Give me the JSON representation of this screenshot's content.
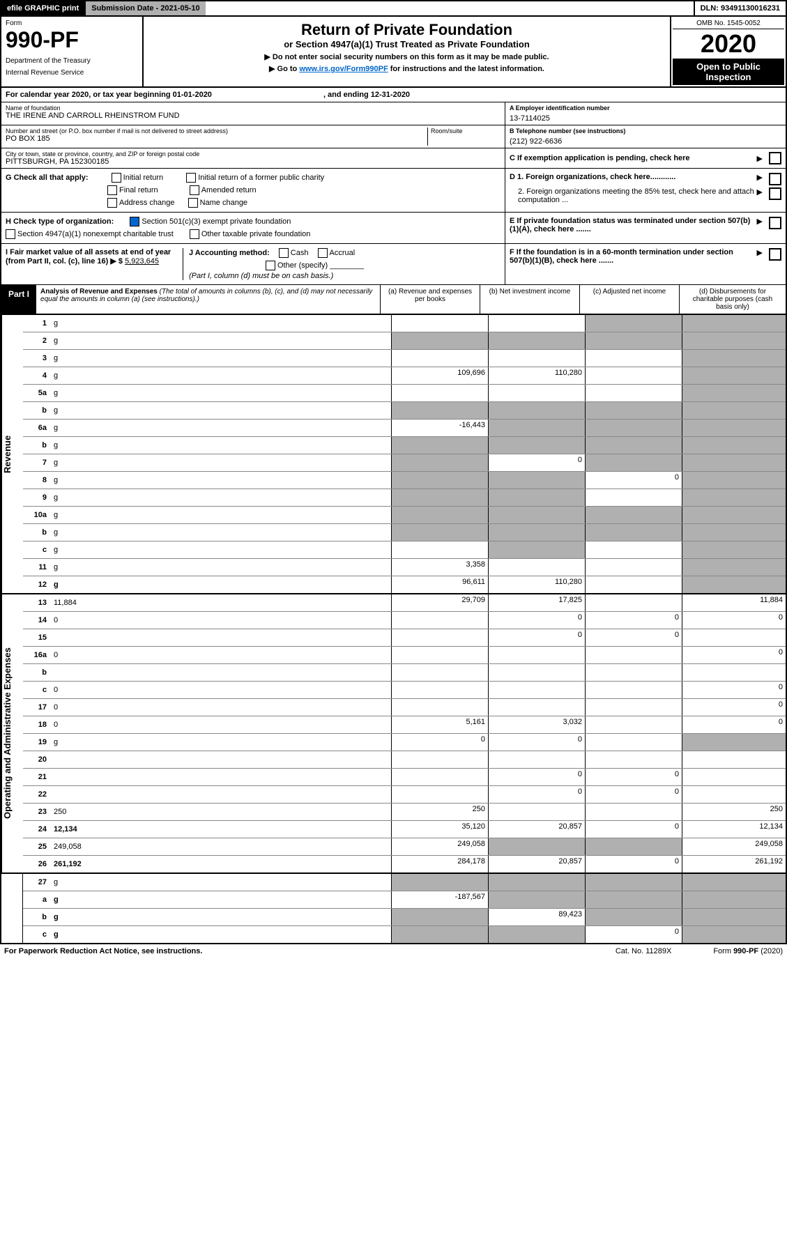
{
  "topbar": {
    "print": "efile GRAPHIC print",
    "submission": "Submission Date - 2021-05-10",
    "dln": "DLN: 93491130016231"
  },
  "header": {
    "form_label": "Form",
    "form_number": "990-PF",
    "dept1": "Department of the Treasury",
    "dept2": "Internal Revenue Service",
    "title": "Return of Private Foundation",
    "subtitle": "or Section 4947(a)(1) Trust Treated as Private Foundation",
    "note1": "▶ Do not enter social security numbers on this form as it may be made public.",
    "note2_pre": "▶ Go to ",
    "note2_link": "www.irs.gov/Form990PF",
    "note2_post": " for instructions and the latest information.",
    "omb": "OMB No. 1545-0052",
    "year": "2020",
    "open": "Open to Public Inspection"
  },
  "calendar": {
    "text_pre": "For calendar year 2020, or tax year beginning ",
    "begin": "01-01-2020",
    "text_mid": ", and ending ",
    "end": "12-31-2020"
  },
  "info": {
    "name_label": "Name of foundation",
    "name": "THE IRENE AND CARROLL RHEINSTROM FUND",
    "address_label": "Number and street (or P.O. box number if mail is not delivered to street address)",
    "room_label": "Room/suite",
    "address": "PO BOX 185",
    "city_label": "City or town, state or province, country, and ZIP or foreign postal code",
    "city": "PITTSBURGH, PA  152300185",
    "ein_label": "A Employer identification number",
    "ein": "13-7114025",
    "phone_label": "B Telephone number (see instructions)",
    "phone": "(212) 922-6636",
    "c_label": "C If exemption application is pending, check here"
  },
  "checks": {
    "g_label": "G Check all that apply:",
    "g_initial": "Initial return",
    "g_initial_former": "Initial return of a former public charity",
    "g_final": "Final return",
    "g_amended": "Amended return",
    "g_address": "Address change",
    "g_name": "Name change",
    "h_label": "H Check type of organization:",
    "h_501c3": "Section 501(c)(3) exempt private foundation",
    "h_4947": "Section 4947(a)(1) nonexempt charitable trust",
    "h_other": "Other taxable private foundation",
    "i_label_pre": "I Fair market value of all assets at end of year (from Part II, col. (c), line 16) ▶ $ ",
    "i_value": "5,923,645",
    "j_label": "J Accounting method:",
    "j_cash": "Cash",
    "j_accrual": "Accrual",
    "j_other": "Other (specify)",
    "j_note": "(Part I, column (d) must be on cash basis.)",
    "d1": "D 1. Foreign organizations, check here............",
    "d2": "2. Foreign organizations meeting the 85% test, check here and attach computation ...",
    "e": "E  If private foundation status was terminated under section 507(b)(1)(A), check here .......",
    "f": "F  If the foundation is in a 60-month termination under section 507(b)(1)(B), check here .......",
    "arrow": "▶"
  },
  "part1": {
    "label": "Part I",
    "title": "Analysis of Revenue and Expenses",
    "desc": " (The total of amounts in columns (b), (c), and (d) may not necessarily equal the amounts in column (a) (see instructions).)",
    "col_a": "(a) Revenue and expenses per books",
    "col_b": "(b) Net investment income",
    "col_c": "(c) Adjusted net income",
    "col_d": "(d) Disbursements for charitable purposes (cash basis only)"
  },
  "vert": {
    "revenue": "Revenue",
    "expenses": "Operating and Administrative Expenses"
  },
  "rows": [
    {
      "n": "1",
      "d": "g",
      "a": "",
      "b": "",
      "c": "g"
    },
    {
      "n": "2",
      "d": "g",
      "a": "g",
      "b": "g",
      "c": "g"
    },
    {
      "n": "3",
      "d": "g",
      "a": "",
      "b": "",
      "c": ""
    },
    {
      "n": "4",
      "d": "g",
      "a": "109,696",
      "b": "110,280",
      "c": ""
    },
    {
      "n": "5a",
      "d": "g",
      "a": "",
      "b": "",
      "c": ""
    },
    {
      "n": "b",
      "d": "g",
      "a": "g",
      "b": "g",
      "c": "g"
    },
    {
      "n": "6a",
      "d": "g",
      "a": "-16,443",
      "b": "g",
      "c": "g"
    },
    {
      "n": "b",
      "d": "g",
      "a": "g",
      "b": "g",
      "c": "g"
    },
    {
      "n": "7",
      "d": "g",
      "a": "g",
      "b": "0",
      "c": "g"
    },
    {
      "n": "8",
      "d": "g",
      "a": "g",
      "b": "g",
      "c": "0"
    },
    {
      "n": "9",
      "d": "g",
      "a": "g",
      "b": "g",
      "c": ""
    },
    {
      "n": "10a",
      "d": "g",
      "a": "g",
      "b": "g",
      "c": "g"
    },
    {
      "n": "b",
      "d": "g",
      "a": "g",
      "b": "g",
      "c": "g"
    },
    {
      "n": "c",
      "d": "g",
      "a": "",
      "b": "g",
      "c": ""
    },
    {
      "n": "11",
      "d": "g",
      "a": "3,358",
      "b": "",
      "c": ""
    },
    {
      "n": "12",
      "d": "g",
      "a": "96,611",
      "b": "110,280",
      "c": "",
      "bold": true
    }
  ],
  "rows2": [
    {
      "n": "13",
      "d": "11,884",
      "a": "29,709",
      "b": "17,825",
      "c": ""
    },
    {
      "n": "14",
      "d": "0",
      "a": "",
      "b": "0",
      "c": "0"
    },
    {
      "n": "15",
      "d": "",
      "a": "",
      "b": "0",
      "c": "0"
    },
    {
      "n": "16a",
      "d": "0",
      "a": "",
      "b": "",
      "c": ""
    },
    {
      "n": "b",
      "d": "",
      "a": "",
      "b": "",
      "c": ""
    },
    {
      "n": "c",
      "d": "0",
      "a": "",
      "b": "",
      "c": ""
    },
    {
      "n": "17",
      "d": "0",
      "a": "",
      "b": "",
      "c": ""
    },
    {
      "n": "18",
      "d": "0",
      "a": "5,161",
      "b": "3,032",
      "c": ""
    },
    {
      "n": "19",
      "d": "g",
      "a": "0",
      "b": "0",
      "c": ""
    },
    {
      "n": "20",
      "d": "",
      "a": "",
      "b": "",
      "c": ""
    },
    {
      "n": "21",
      "d": "",
      "a": "",
      "b": "0",
      "c": "0"
    },
    {
      "n": "22",
      "d": "",
      "a": "",
      "b": "0",
      "c": "0"
    },
    {
      "n": "23",
      "d": "250",
      "a": "250",
      "b": "",
      "c": ""
    },
    {
      "n": "24",
      "d": "12,134",
      "a": "35,120",
      "b": "20,857",
      "c": "0",
      "bold": true
    },
    {
      "n": "25",
      "d": "249,058",
      "a": "249,058",
      "b": "g",
      "c": "g"
    },
    {
      "n": "26",
      "d": "261,192",
      "a": "284,178",
      "b": "20,857",
      "c": "0",
      "bold": true
    }
  ],
  "rows3": [
    {
      "n": "27",
      "d": "g",
      "a": "g",
      "b": "g",
      "c": "g"
    },
    {
      "n": "a",
      "d": "g",
      "a": "-187,567",
      "b": "g",
      "c": "g",
      "bold": true
    },
    {
      "n": "b",
      "d": "g",
      "a": "g",
      "b": "89,423",
      "c": "g",
      "bold": true
    },
    {
      "n": "c",
      "d": "g",
      "a": "g",
      "b": "g",
      "c": "0",
      "bold": true
    }
  ],
  "footer": {
    "left": "For Paperwork Reduction Act Notice, see instructions.",
    "mid": "Cat. No. 11289X",
    "right": "Form 990-PF (2020)"
  }
}
